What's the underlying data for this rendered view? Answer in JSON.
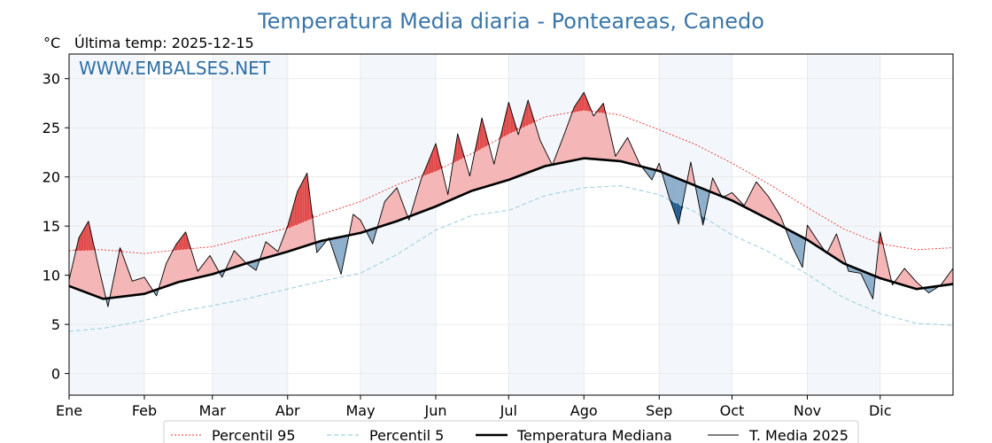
{
  "chart_data": {
    "type": "line",
    "title": "Temperatura Media diaria - Ponteareas, Canedo",
    "unit_label": "°C",
    "last_temp_label": "Última temp: 2025-12-15",
    "watermark": "WWW.EMBALSES.NET",
    "xlabel": "",
    "ylabel": "°C",
    "ylim": [
      -2.2,
      32.5
    ],
    "yticks": [
      0,
      5,
      10,
      15,
      20,
      25,
      30
    ],
    "x_range_days": [
      1,
      365
    ],
    "months": [
      {
        "label": "Ene",
        "day": 1
      },
      {
        "label": "Feb",
        "day": 32
      },
      {
        "label": "Mar",
        "day": 60
      },
      {
        "label": "Abr",
        "day": 91
      },
      {
        "label": "May",
        "day": 121
      },
      {
        "label": "Jun",
        "day": 152
      },
      {
        "label": "Jul",
        "day": 182
      },
      {
        "label": "Ago",
        "day": 213
      },
      {
        "label": "Sep",
        "day": 244
      },
      {
        "label": "Oct",
        "day": 274
      },
      {
        "label": "Nov",
        "day": 305
      },
      {
        "label": "Dic",
        "day": 335
      }
    ],
    "legend": {
      "p95": "Percentil 95",
      "p5": "Percentil 5",
      "median": "Temperatura Mediana",
      "media2025": "T. Media 2025"
    },
    "colors": {
      "p95": "#e8302a",
      "p5": "#9fd1e2",
      "median": "#000000",
      "media2025": "#000000",
      "above": "#f4b6b6",
      "above_extreme": "#e04848",
      "below": "#8fb0cc",
      "below_extreme": "#1f5a8c",
      "band": "#f3f7fb",
      "title": "#3a76a8",
      "watermark": "#2f6ea5"
    },
    "series": [
      {
        "name": "Percentil 95",
        "key": "p95",
        "days": [
          1,
          15,
          32,
          46,
          60,
          74,
          91,
          105,
          121,
          136,
          152,
          167,
          182,
          197,
          213,
          228,
          244,
          259,
          274,
          289,
          305,
          320,
          335,
          350,
          365
        ],
        "values": [
          12.5,
          12.6,
          12.2,
          12.6,
          12.9,
          13.8,
          14.8,
          16.2,
          17.5,
          19.2,
          20.6,
          22.4,
          24.4,
          26.1,
          26.8,
          26.3,
          24.8,
          23.3,
          21.4,
          19.3,
          16.9,
          14.7,
          13.2,
          12.6,
          12.8
        ]
      },
      {
        "name": "Percentil 5",
        "key": "p5",
        "days": [
          1,
          15,
          32,
          46,
          60,
          74,
          91,
          105,
          121,
          136,
          152,
          167,
          182,
          197,
          213,
          228,
          244,
          259,
          274,
          289,
          305,
          320,
          335,
          350,
          365
        ],
        "values": [
          4.3,
          4.6,
          5.4,
          6.3,
          6.9,
          7.6,
          8.6,
          9.4,
          10.2,
          12.1,
          14.6,
          16.1,
          16.6,
          18.1,
          18.9,
          19.1,
          18.2,
          16.4,
          14.1,
          12.4,
          10.1,
          7.7,
          6.1,
          5.1,
          4.9
        ]
      },
      {
        "name": "Temperatura Mediana",
        "key": "median",
        "days": [
          1,
          15,
          32,
          46,
          60,
          74,
          91,
          105,
          121,
          136,
          152,
          167,
          182,
          197,
          213,
          228,
          244,
          259,
          274,
          289,
          305,
          320,
          335,
          350,
          365
        ],
        "values": [
          8.9,
          7.6,
          8.1,
          9.3,
          10.1,
          11.2,
          12.4,
          13.5,
          14.3,
          15.5,
          17.0,
          18.6,
          19.7,
          21.1,
          21.9,
          21.6,
          20.6,
          19.1,
          17.6,
          15.7,
          13.6,
          11.2,
          9.7,
          8.6,
          9.1
        ]
      },
      {
        "name": "T. Media 2025",
        "key": "media2025",
        "days": [
          1,
          5,
          9,
          13,
          17,
          22,
          27,
          32,
          37,
          41,
          45,
          49,
          54,
          59,
          64,
          69,
          74,
          78,
          82,
          87,
          91,
          95,
          99,
          103,
          108,
          113,
          118,
          121,
          126,
          131,
          136,
          141,
          146,
          152,
          157,
          161,
          166,
          171,
          176,
          182,
          186,
          190,
          195,
          200,
          205,
          209,
          213,
          217,
          221,
          226,
          231,
          236,
          241,
          244,
          248,
          252,
          257,
          262,
          266,
          270,
          274,
          279,
          284,
          289,
          294,
          299,
          303,
          305,
          309,
          313,
          317,
          322,
          327,
          332,
          335,
          340,
          345,
          350,
          355,
          360,
          365
        ],
        "values": [
          9.5,
          13.8,
          15.5,
          11.0,
          6.8,
          12.8,
          9.4,
          9.8,
          7.9,
          11.2,
          13.1,
          14.4,
          10.4,
          12.0,
          9.8,
          12.5,
          11.2,
          10.5,
          13.4,
          12.4,
          15.0,
          18.5,
          20.4,
          12.3,
          13.8,
          10.1,
          16.2,
          15.6,
          13.2,
          17.5,
          18.9,
          15.6,
          19.8,
          23.4,
          18.2,
          24.4,
          20.1,
          26.0,
          21.3,
          27.6,
          24.3,
          27.8,
          23.7,
          21.2,
          24.4,
          27.1,
          28.6,
          26.2,
          27.5,
          22.1,
          24.0,
          21.3,
          19.7,
          21.4,
          18.0,
          15.2,
          21.5,
          15.1,
          19.9,
          17.9,
          18.4,
          17.1,
          19.5,
          18.0,
          16.0,
          12.8,
          10.8,
          15.1,
          13.6,
          12.2,
          14.2,
          10.4,
          10.2,
          7.6,
          14.4,
          9.0,
          10.7,
          9.3,
          8.2,
          9.0,
          10.7
        ]
      }
    ]
  }
}
